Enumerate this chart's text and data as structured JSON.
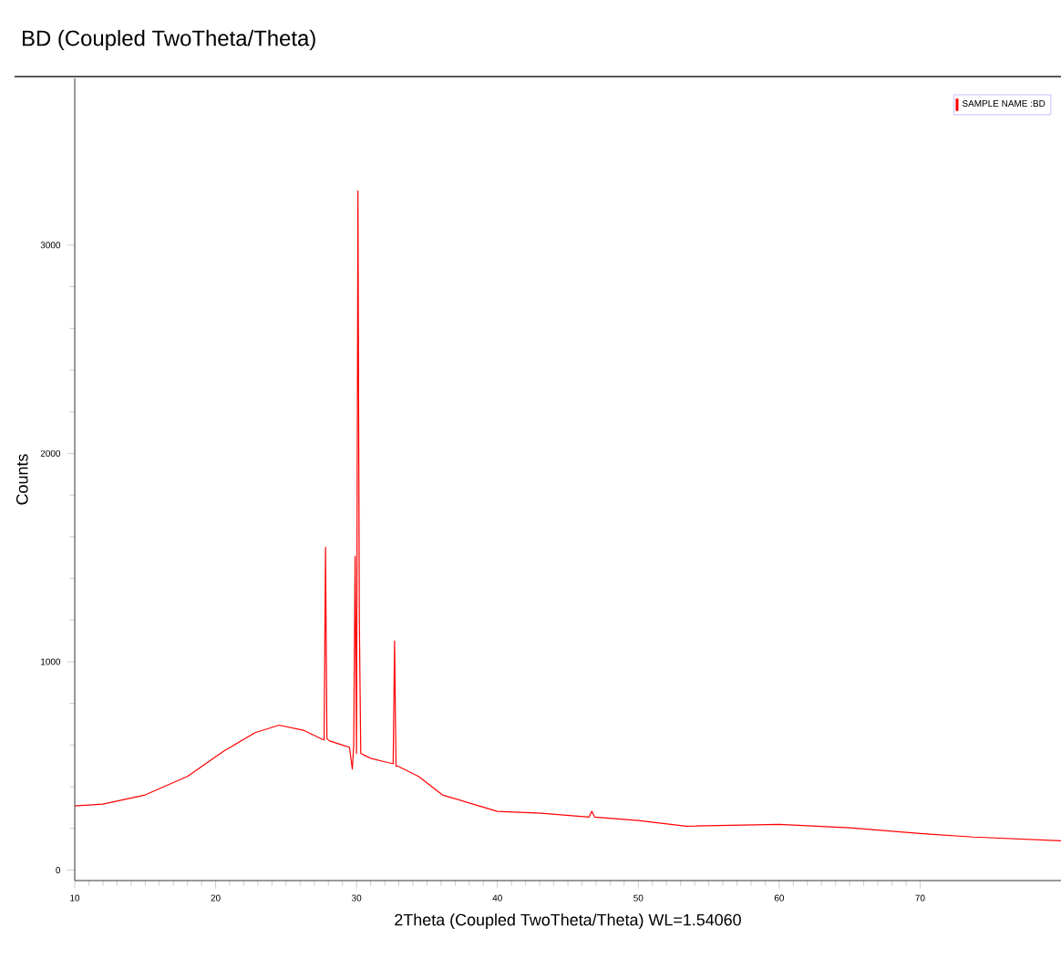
{
  "chart_data": {
    "type": "line",
    "title": "BD (Coupled TwoTheta/Theta)",
    "xlabel": "2Theta (Coupled TwoTheta/Theta) WL=1.54060",
    "ylabel": "Counts",
    "xlim": [
      10,
      80
    ],
    "xticks": [
      10,
      20,
      30,
      40,
      50,
      60,
      70
    ],
    "ylim": [
      -50,
      3800
    ],
    "yticks": [
      0,
      1000,
      2000,
      3000
    ],
    "grid": false,
    "legend": "top right",
    "marker": "none",
    "line_style": "solid",
    "series": [
      {
        "name": "SAMPLE NAME :BD",
        "color": "#ff0000",
        "x": [
          10,
          12,
          15,
          18,
          20.6,
          22.8,
          24.5,
          26.3,
          27.5,
          27.7,
          27.8,
          27.9,
          28.1,
          29,
          29.5,
          29.7,
          29.8,
          29.9,
          30.0,
          30.1,
          30.2,
          30.3,
          30.6,
          31,
          32,
          32.6,
          32.7,
          32.8,
          32.9,
          33.2,
          34.4,
          36.1,
          38.7,
          40,
          43.1,
          46.5,
          46.7,
          46.9,
          50,
          53.4,
          60,
          65,
          70,
          73.8,
          80
        ],
        "values": [
          308,
          317,
          361,
          450,
          572,
          660,
          696,
          670,
          630,
          625,
          1550,
          630,
          620,
          600,
          590,
          485,
          600,
          1507,
          560,
          3260,
          1200,
          560,
          550,
          537,
          520,
          511,
          1100,
          500,
          500,
          490,
          450,
          361,
          308,
          282,
          273,
          255,
          282,
          255,
          238,
          211,
          220,
          203,
          176,
          159,
          141
        ]
      }
    ]
  }
}
